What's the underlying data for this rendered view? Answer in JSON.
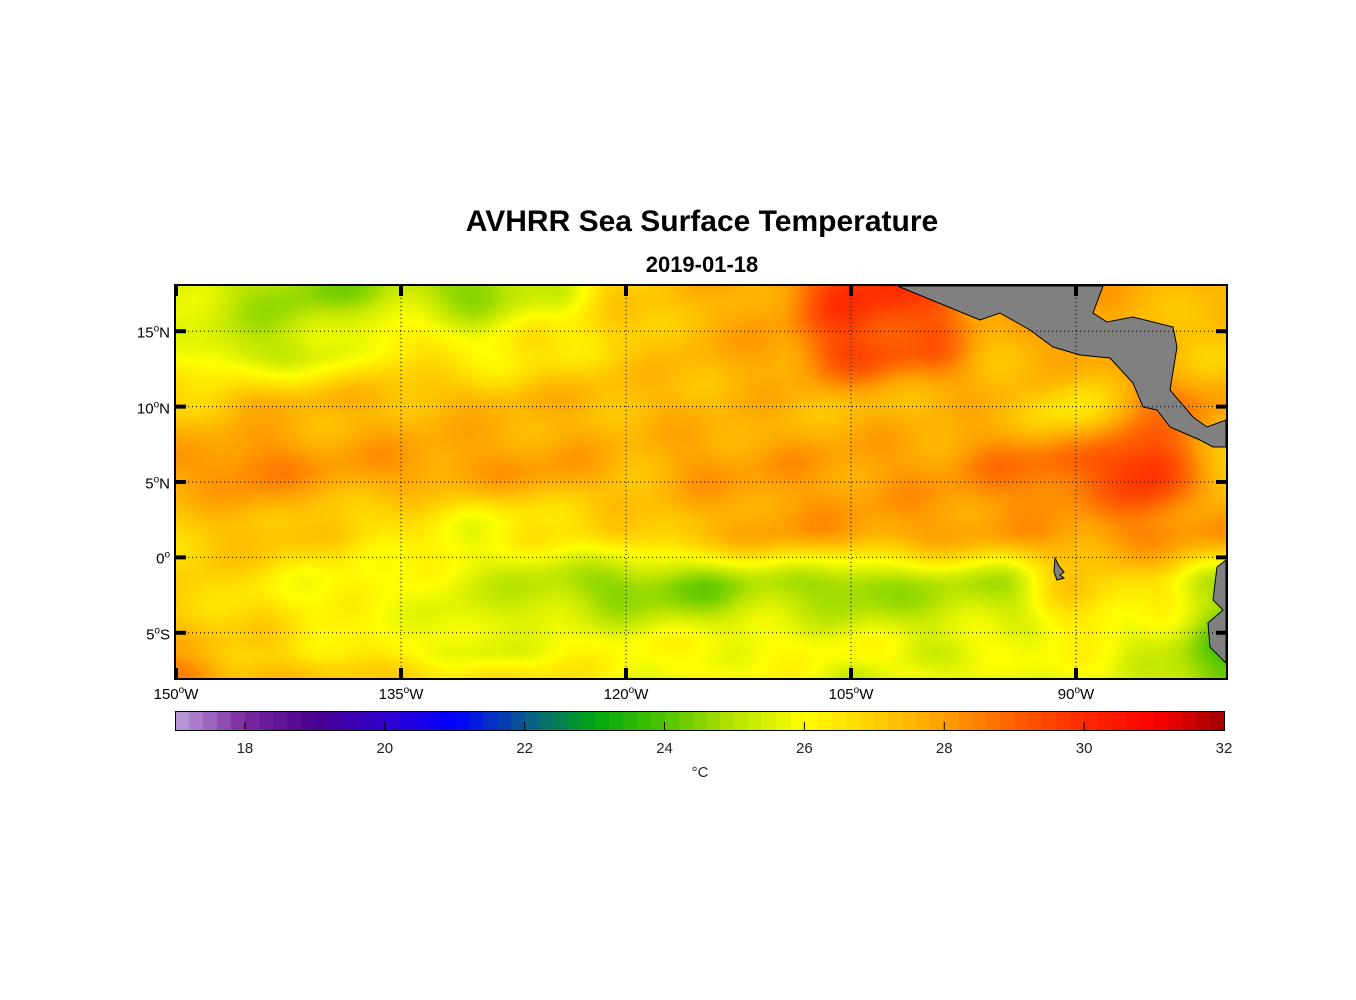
{
  "chart_data": {
    "type": "heatmap",
    "title": "AVHRR Sea Surface Temperature",
    "subtitle": "2019-01-18",
    "lon_range": [
      -150,
      -80
    ],
    "lat_range": [
      -8,
      18
    ],
    "grid": "on (dotted)",
    "degree_symbol": "o",
    "x_ticks": [
      {
        "value": -150,
        "num": "150",
        "hem": "W"
      },
      {
        "value": -135,
        "num": "135",
        "hem": "W"
      },
      {
        "value": -120,
        "num": "120",
        "hem": "W"
      },
      {
        "value": -105,
        "num": "105",
        "hem": "W"
      },
      {
        "value": -90,
        "num": "90",
        "hem": "W"
      }
    ],
    "y_ticks": [
      {
        "value": 15,
        "num": "15",
        "hem": "N"
      },
      {
        "value": 10,
        "num": "10",
        "hem": "N"
      },
      {
        "value": 5,
        "num": "5",
        "hem": "N"
      },
      {
        "value": 0,
        "num": "0",
        "hem": ""
      },
      {
        "value": -5,
        "num": "5",
        "hem": "S"
      }
    ],
    "field": {
      "lons": [
        -150,
        -145,
        -140,
        -135,
        -130,
        -125,
        -120,
        -115,
        -110,
        -105,
        -100,
        -95,
        -90,
        -85,
        -80
      ],
      "lats": [
        18,
        14,
        10,
        6,
        2,
        -2,
        -6,
        -8
      ],
      "sst_c": [
        [
          25.5,
          25,
          24.5,
          25,
          24.5,
          25.5,
          27,
          27.5,
          28,
          30,
          29.5,
          28,
          28,
          27.5,
          27.5
        ],
        [
          26,
          25,
          25.5,
          26.5,
          26,
          26.5,
          27,
          27.5,
          28,
          29.5,
          29,
          27.5,
          28,
          27.5,
          27
        ],
        [
          27,
          27.5,
          27.5,
          27.5,
          27.5,
          27.5,
          27.5,
          27.5,
          27.5,
          27.5,
          27.5,
          27.5,
          26.5,
          28.5,
          28
        ],
        [
          28,
          28.5,
          28,
          28,
          28,
          28,
          27.5,
          28,
          28,
          28,
          28,
          28.5,
          29,
          30,
          27
        ],
        [
          27,
          27.5,
          27,
          26.5,
          26,
          26.5,
          27,
          27.5,
          28,
          28,
          28,
          28,
          28,
          28.5,
          28
        ],
        [
          27,
          26.5,
          26,
          26,
          25.5,
          25,
          24.5,
          24.5,
          25,
          24.5,
          25,
          25,
          27,
          26.5,
          25
        ],
        [
          27.5,
          27,
          26.5,
          26,
          25.5,
          26,
          26,
          26,
          26,
          26,
          25.5,
          26,
          26,
          25.5,
          24
        ],
        [
          28.5,
          27.5,
          27,
          27,
          26.5,
          26.5,
          26,
          26,
          26,
          25.5,
          26,
          25.5,
          26,
          25.5,
          24
        ]
      ]
    },
    "land_color": "#808080",
    "colorbar": {
      "range": [
        17,
        32
      ],
      "ticks": [
        18,
        20,
        22,
        24,
        26,
        28,
        30,
        32
      ],
      "tick_labels": [
        "18",
        "20",
        "22",
        "24",
        "26",
        "28",
        "30",
        "32"
      ],
      "unit": "°C",
      "stops": [
        [
          17,
          "#c0a0dc"
        ],
        [
          18,
          "#7a2a9e"
        ],
        [
          19,
          "#4a0090"
        ],
        [
          20,
          "#3000d0"
        ],
        [
          21,
          "#0000ff"
        ],
        [
          22,
          "#0a5a90"
        ],
        [
          23,
          "#00aa10"
        ],
        [
          24,
          "#50c400"
        ],
        [
          25,
          "#b8e400"
        ],
        [
          26,
          "#ffff00"
        ],
        [
          27,
          "#ffd000"
        ],
        [
          28,
          "#ffa000"
        ],
        [
          29,
          "#ff6000"
        ],
        [
          30,
          "#ff2a00"
        ],
        [
          31,
          "#ff0000"
        ],
        [
          32,
          "#a00000"
        ]
      ]
    }
  }
}
